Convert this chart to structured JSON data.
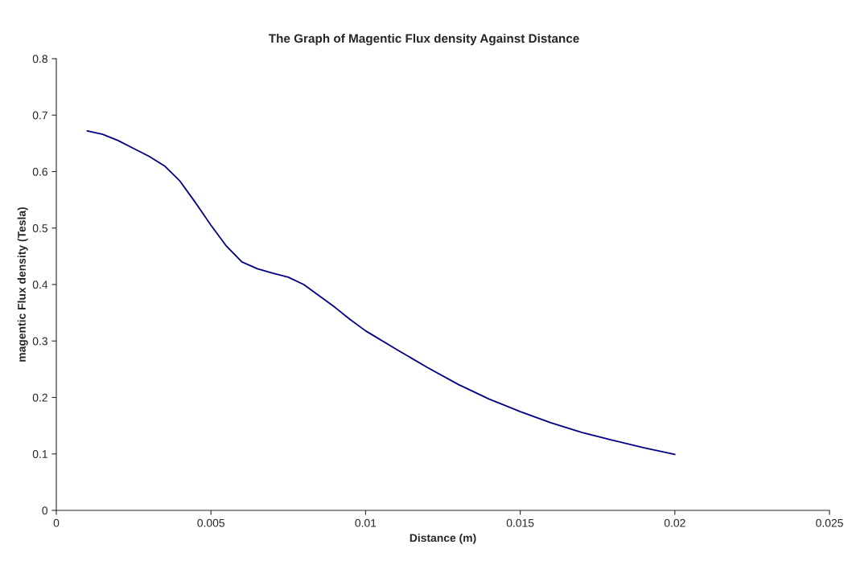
{
  "chart_data": {
    "type": "line",
    "title": "The Graph of Magentic Flux density Against Distance",
    "xlabel": "Distance (m)",
    "ylabel": "magentic Flux density (Tesla)",
    "series": [
      {
        "color": "#000080",
        "x": [
          0.001,
          0.0015,
          0.002,
          0.0025,
          0.003,
          0.0035,
          0.004,
          0.0045,
          0.005,
          0.0055,
          0.006,
          0.0065,
          0.007,
          0.0075,
          0.008,
          0.0085,
          0.009,
          0.0095,
          0.01,
          0.011,
          0.012,
          0.013,
          0.014,
          0.015,
          0.016,
          0.017,
          0.018,
          0.019,
          0.02
        ],
        "values": [
          0.672,
          0.666,
          0.655,
          0.641,
          0.627,
          0.61,
          0.583,
          0.545,
          0.505,
          0.468,
          0.44,
          0.428,
          0.42,
          0.413,
          0.4,
          0.38,
          0.36,
          0.338,
          0.318,
          0.285,
          0.253,
          0.223,
          0.197,
          0.175,
          0.155,
          0.138,
          0.124,
          0.111,
          0.099
        ]
      }
    ],
    "xlim": [
      0,
      0.025
    ],
    "xticks": [
      0,
      0.005,
      0.01,
      0.015,
      0.02,
      0.025
    ],
    "ylim": [
      0,
      0.8
    ],
    "yticks": [
      0,
      0.1,
      0.2,
      0.3,
      0.4,
      0.5,
      0.6,
      0.7,
      0.8
    ],
    "grid": false,
    "marker": "none",
    "line_style": "solid"
  }
}
